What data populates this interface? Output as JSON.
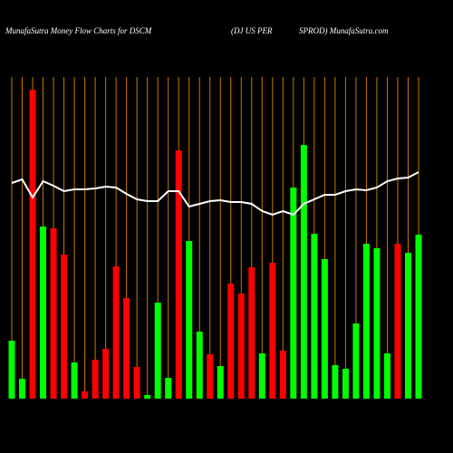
{
  "chart_data": {
    "type": "bar",
    "title": "MunafaSutra  Money Flow  Charts for DSCM",
    "subtitle": "(DJ US PER",
    "subtitle_right": "SPROD) MunafaSutra.com",
    "ylim": [
      0,
      360
    ],
    "series": [
      {
        "name": "Money Flow",
        "type": "bar",
        "values": [
          64,
          22,
          341,
          190,
          188,
          159,
          40,
          8,
          43,
          55,
          146,
          111,
          35,
          4,
          106,
          23,
          274,
          174,
          74,
          49,
          36,
          127,
          116,
          145,
          50,
          150,
          53,
          233,
          280,
          182,
          154,
          37,
          33,
          83,
          171,
          166,
          50,
          171,
          161,
          181
        ],
        "colors": [
          "#00ff00",
          "#00ff00",
          "#ff0000",
          "#00ff00",
          "#ff0000",
          "#ff0000",
          "#00ff00",
          "#ff0000",
          "#ff0000",
          "#ff0000",
          "#ff0000",
          "#ff0000",
          "#ff0000",
          "#00ff00",
          "#00ff00",
          "#00ff00",
          "#ff0000",
          "#00ff00",
          "#00ff00",
          "#ff0000",
          "#00ff00",
          "#ff0000",
          "#ff0000",
          "#ff0000",
          "#00ff00",
          "#ff0000",
          "#ff0000",
          "#00ff00",
          "#00ff00",
          "#00ff00",
          "#00ff00",
          "#00ff00",
          "#00ff00",
          "#00ff00",
          "#00ff00",
          "#00ff00",
          "#00ff00",
          "#ff0000",
          "#00ff00",
          "#00ff00"
        ]
      },
      {
        "name": "Trend",
        "type": "line",
        "color": "#ffffff",
        "values": [
          238,
          242,
          222,
          240,
          235,
          229,
          231,
          231,
          232,
          234,
          233,
          226,
          220,
          218,
          218,
          229,
          229,
          212,
          215,
          218,
          219,
          217,
          217,
          215,
          207,
          203,
          207,
          203,
          215,
          220,
          225,
          225,
          229,
          231,
          230,
          233,
          240,
          243,
          244,
          250
        ]
      }
    ],
    "gridline_color": "#c87800"
  }
}
